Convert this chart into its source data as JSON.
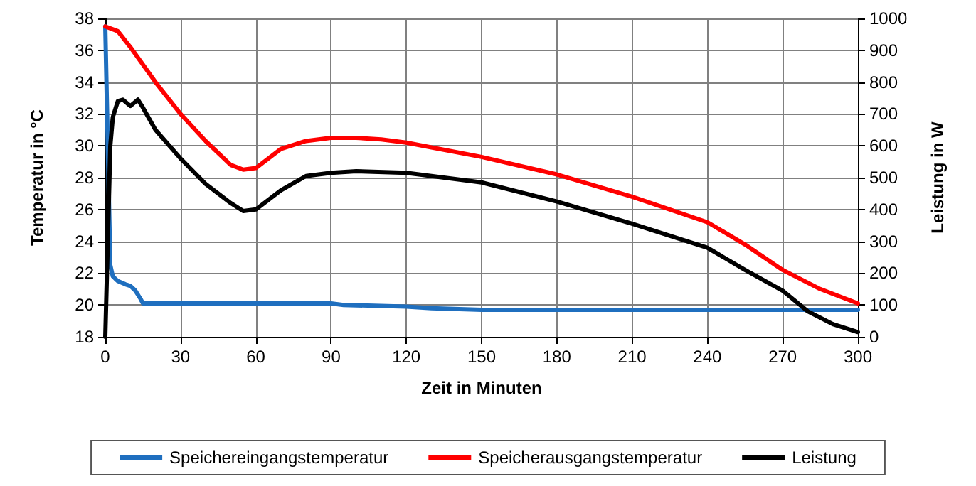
{
  "chart_data": {
    "type": "line",
    "xlabel": "Zeit in Minuten",
    "ylabel": "Temperatur in °C",
    "y2label": "Leistung in W",
    "xlim": [
      0,
      300
    ],
    "xticks": [
      0,
      30,
      60,
      90,
      120,
      150,
      180,
      210,
      240,
      270,
      300
    ],
    "ylim": [
      18,
      38
    ],
    "yticks": [
      18,
      20,
      22,
      24,
      26,
      28,
      30,
      32,
      34,
      36,
      38
    ],
    "y2lim": [
      0,
      1000
    ],
    "y2ticks": [
      0,
      100,
      200,
      300,
      400,
      500,
      600,
      700,
      800,
      900,
      1000
    ],
    "grid": true,
    "legend": "bottom",
    "marker": "none",
    "line_style": "solid",
    "series": [
      {
        "name": "Speichereingangstemperatur",
        "color": "#1f6fbf",
        "x": [
          0,
          1,
          2,
          3,
          5,
          8,
          10,
          12,
          14,
          15,
          30,
          60,
          90,
          95,
          120,
          130,
          150,
          200,
          250,
          300
        ],
        "values": [
          37.5,
          30,
          22.5,
          21.8,
          21.5,
          21.3,
          21.2,
          20.9,
          20.4,
          20.1,
          20.1,
          20.1,
          20.1,
          20,
          19.9,
          19.8,
          19.7,
          19.7,
          19.7,
          19.7
        ]
      },
      {
        "name": "Speicherausgangstemperatur",
        "color": "#ff0000",
        "x": [
          0,
          5,
          10,
          20,
          30,
          40,
          50,
          55,
          60,
          65,
          70,
          80,
          90,
          100,
          110,
          120,
          130,
          150,
          180,
          210,
          240,
          255,
          270,
          285,
          300
        ],
        "values": [
          37.5,
          37.2,
          36.2,
          34,
          32,
          30.3,
          28.8,
          28.5,
          28.6,
          29.2,
          29.8,
          30.3,
          30.5,
          30.5,
          30.4,
          30.2,
          29.9,
          29.3,
          28.2,
          26.8,
          25.2,
          23.8,
          22.2,
          21,
          20.1
        ]
      },
      {
        "name": "Leistung",
        "color": "#000000",
        "axis": "y2",
        "x": [
          0,
          1,
          2,
          3,
          5,
          7,
          10,
          13,
          15,
          20,
          30,
          40,
          50,
          55,
          60,
          65,
          70,
          80,
          90,
          100,
          120,
          150,
          180,
          210,
          240,
          255,
          270,
          280,
          290,
          300
        ],
        "values": [
          0,
          300,
          600,
          690,
          740,
          745,
          725,
          745,
          720,
          650,
          560,
          480,
          420,
          395,
          400,
          430,
          460,
          505,
          515,
          520,
          515,
          485,
          425,
          355,
          280,
          210,
          145,
          80,
          40,
          15
        ]
      }
    ]
  }
}
